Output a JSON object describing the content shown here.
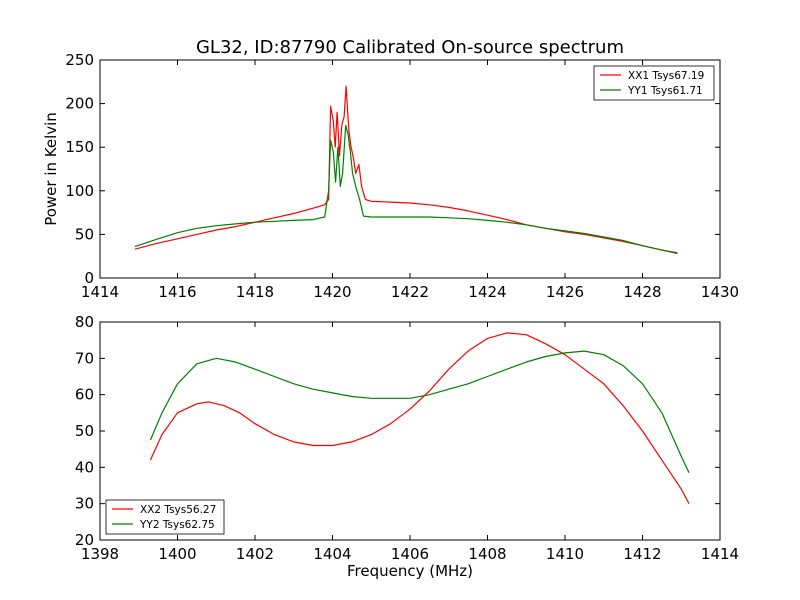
{
  "title": "GL32, ID:87790 Calibrated On-source spectrum",
  "chart_data": [
    {
      "type": "line",
      "title": "GL32, ID:87790 Calibrated On-source spectrum",
      "xlabel": "",
      "ylabel": "Power in Kelvin",
      "xlim": [
        1414,
        1430
      ],
      "ylim": [
        0,
        250
      ],
      "xticks": [
        "1414",
        "1416",
        "1418",
        "1420",
        "1422",
        "1424",
        "1426",
        "1428",
        "1430"
      ],
      "yticks": [
        "0",
        "50",
        "100",
        "150",
        "200",
        "250"
      ],
      "grid": false,
      "legend_position": "top-right",
      "series": [
        {
          "name": "XX1 Tsys67.19",
          "color": "#ff0000",
          "points": [
            [
              1414.9,
              33
            ],
            [
              1415.5,
              40
            ],
            [
              1416,
              45
            ],
            [
              1416.5,
              50
            ],
            [
              1417,
              55
            ],
            [
              1417.5,
              59
            ],
            [
              1418,
              64
            ],
            [
              1418.5,
              69
            ],
            [
              1419,
              74
            ],
            [
              1419.5,
              80
            ],
            [
              1419.8,
              84
            ],
            [
              1419.9,
              90
            ],
            [
              1419.95,
              197
            ],
            [
              1420.02,
              180
            ],
            [
              1420.07,
              150
            ],
            [
              1420.12,
              190
            ],
            [
              1420.18,
              140
            ],
            [
              1420.24,
              175
            ],
            [
              1420.3,
              185
            ],
            [
              1420.35,
              220
            ],
            [
              1420.42,
              170
            ],
            [
              1420.48,
              150
            ],
            [
              1420.54,
              138
            ],
            [
              1420.6,
              120
            ],
            [
              1420.68,
              130
            ],
            [
              1420.75,
              105
            ],
            [
              1420.85,
              90
            ],
            [
              1421,
              88
            ],
            [
              1421.5,
              87
            ],
            [
              1422,
              86
            ],
            [
              1422.5,
              84
            ],
            [
              1423,
              81
            ],
            [
              1423.5,
              77
            ],
            [
              1424,
              72
            ],
            [
              1424.5,
              67
            ],
            [
              1425,
              61
            ],
            [
              1425.5,
              57
            ],
            [
              1426,
              53
            ],
            [
              1426.5,
              50
            ],
            [
              1427,
              46
            ],
            [
              1427.5,
              42
            ],
            [
              1428,
              37
            ],
            [
              1428.5,
              32
            ],
            [
              1428.9,
              29
            ]
          ]
        },
        {
          "name": "YY1 Tsys61.71",
          "color": "#008000",
          "points": [
            [
              1414.9,
              36
            ],
            [
              1415.5,
              45
            ],
            [
              1416,
              52
            ],
            [
              1416.5,
              57
            ],
            [
              1417,
              60
            ],
            [
              1417.5,
              62
            ],
            [
              1418,
              64
            ],
            [
              1418.5,
              65
            ],
            [
              1419,
              66
            ],
            [
              1419.5,
              67
            ],
            [
              1419.8,
              70
            ],
            [
              1419.9,
              100
            ],
            [
              1419.95,
              158
            ],
            [
              1420.02,
              145
            ],
            [
              1420.08,
              110
            ],
            [
              1420.14,
              150
            ],
            [
              1420.2,
              105
            ],
            [
              1420.26,
              120
            ],
            [
              1420.34,
              175
            ],
            [
              1420.4,
              165
            ],
            [
              1420.46,
              145
            ],
            [
              1420.52,
              120
            ],
            [
              1420.6,
              105
            ],
            [
              1420.7,
              90
            ],
            [
              1420.8,
              71
            ],
            [
              1421,
              70
            ],
            [
              1421.5,
              70
            ],
            [
              1422,
              70
            ],
            [
              1422.5,
              70
            ],
            [
              1423,
              69
            ],
            [
              1423.5,
              68
            ],
            [
              1424,
              66
            ],
            [
              1424.5,
              64
            ],
            [
              1425,
              61
            ],
            [
              1425.5,
              57
            ],
            [
              1426,
              54
            ],
            [
              1426.5,
              51
            ],
            [
              1427,
              47
            ],
            [
              1427.5,
              43
            ],
            [
              1428,
              37
            ],
            [
              1428.5,
              32
            ],
            [
              1428.9,
              28
            ]
          ]
        }
      ]
    },
    {
      "type": "line",
      "title": "",
      "xlabel": "Frequency (MHz)",
      "ylabel": "",
      "xlim": [
        1398,
        1414
      ],
      "ylim": [
        20,
        80
      ],
      "xticks": [
        "1398",
        "1400",
        "1402",
        "1404",
        "1406",
        "1408",
        "1410",
        "1412",
        "1414"
      ],
      "yticks": [
        "20",
        "30",
        "40",
        "50",
        "60",
        "70",
        "80"
      ],
      "grid": false,
      "legend_position": "bottom-left",
      "series": [
        {
          "name": "XX2 Tsys56.27",
          "color": "#ff0000",
          "points": [
            [
              1399.3,
              42
            ],
            [
              1399.6,
              49
            ],
            [
              1400,
              55
            ],
            [
              1400.5,
              57.5
            ],
            [
              1400.8,
              58
            ],
            [
              1401.2,
              57
            ],
            [
              1401.6,
              55
            ],
            [
              1402,
              52
            ],
            [
              1402.5,
              49
            ],
            [
              1403,
              47
            ],
            [
              1403.5,
              46
            ],
            [
              1404,
              46
            ],
            [
              1404.5,
              47
            ],
            [
              1405,
              49
            ],
            [
              1405.5,
              52
            ],
            [
              1406,
              56
            ],
            [
              1406.5,
              61
            ],
            [
              1407,
              67
            ],
            [
              1407.5,
              72
            ],
            [
              1408,
              75.5
            ],
            [
              1408.5,
              77
            ],
            [
              1409,
              76.5
            ],
            [
              1409.5,
              74
            ],
            [
              1410,
              71
            ],
            [
              1410.5,
              67
            ],
            [
              1411,
              63
            ],
            [
              1411.5,
              57
            ],
            [
              1412,
              50
            ],
            [
              1412.5,
              42
            ],
            [
              1413,
              34
            ],
            [
              1413.2,
              30
            ]
          ]
        },
        {
          "name": "YY2 Tsys62.75",
          "color": "#008000",
          "points": [
            [
              1399.3,
              47.5
            ],
            [
              1399.6,
              55
            ],
            [
              1400,
              63
            ],
            [
              1400.5,
              68.5
            ],
            [
              1401,
              70
            ],
            [
              1401.5,
              69
            ],
            [
              1402,
              67
            ],
            [
              1402.5,
              65
            ],
            [
              1403,
              63
            ],
            [
              1403.5,
              61.5
            ],
            [
              1404,
              60.5
            ],
            [
              1404.5,
              59.5
            ],
            [
              1405,
              59
            ],
            [
              1405.5,
              59
            ],
            [
              1406,
              59
            ],
            [
              1406.5,
              60
            ],
            [
              1407,
              61.5
            ],
            [
              1407.5,
              63
            ],
            [
              1408,
              65
            ],
            [
              1408.5,
              67
            ],
            [
              1409,
              69
            ],
            [
              1409.5,
              70.5
            ],
            [
              1410,
              71.5
            ],
            [
              1410.5,
              72
            ],
            [
              1411,
              71
            ],
            [
              1411.5,
              68
            ],
            [
              1412,
              63
            ],
            [
              1412.5,
              55
            ],
            [
              1413,
              43
            ],
            [
              1413.2,
              38.5
            ]
          ]
        }
      ]
    }
  ]
}
